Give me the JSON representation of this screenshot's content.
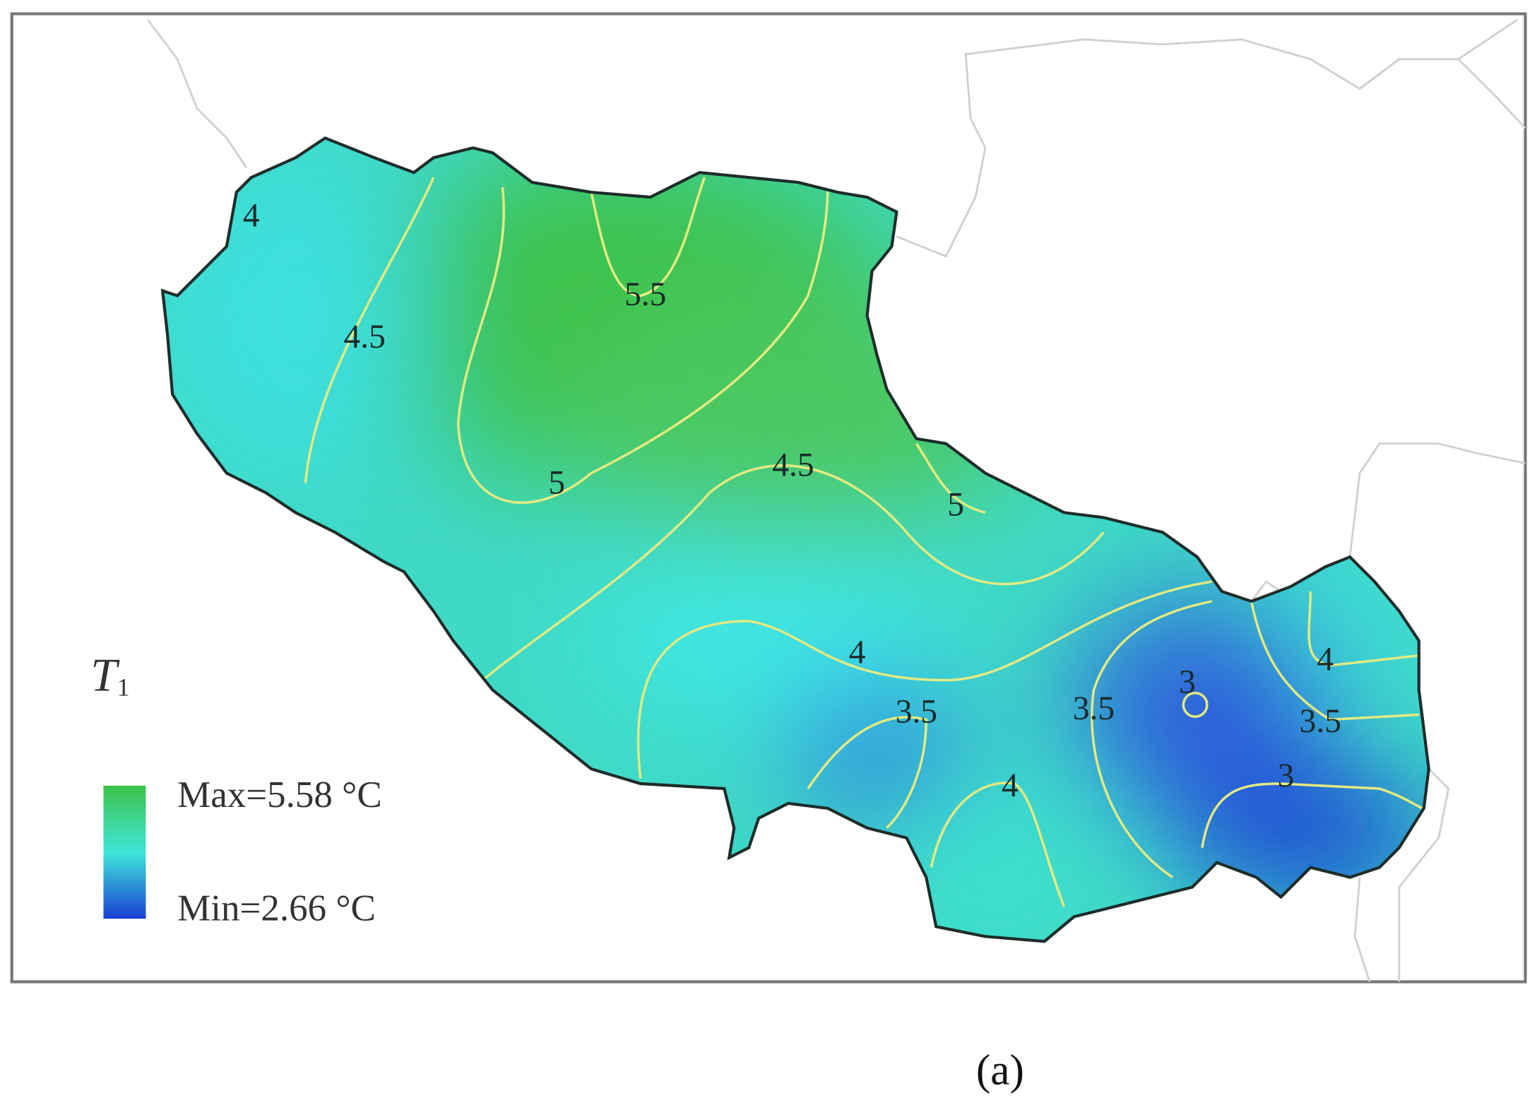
{
  "map": {
    "contour_labels": [
      "4",
      "4.5",
      "5.5",
      "5",
      "4.5",
      "5",
      "4",
      "3.5",
      "3.5",
      "3",
      "4",
      "3.5",
      "4",
      "3"
    ],
    "legend": {
      "symbol": "T",
      "subscript": "1",
      "max": "Max=5.58 °C",
      "min": "Min=2.66 °C"
    }
  },
  "caption": "(a)"
}
